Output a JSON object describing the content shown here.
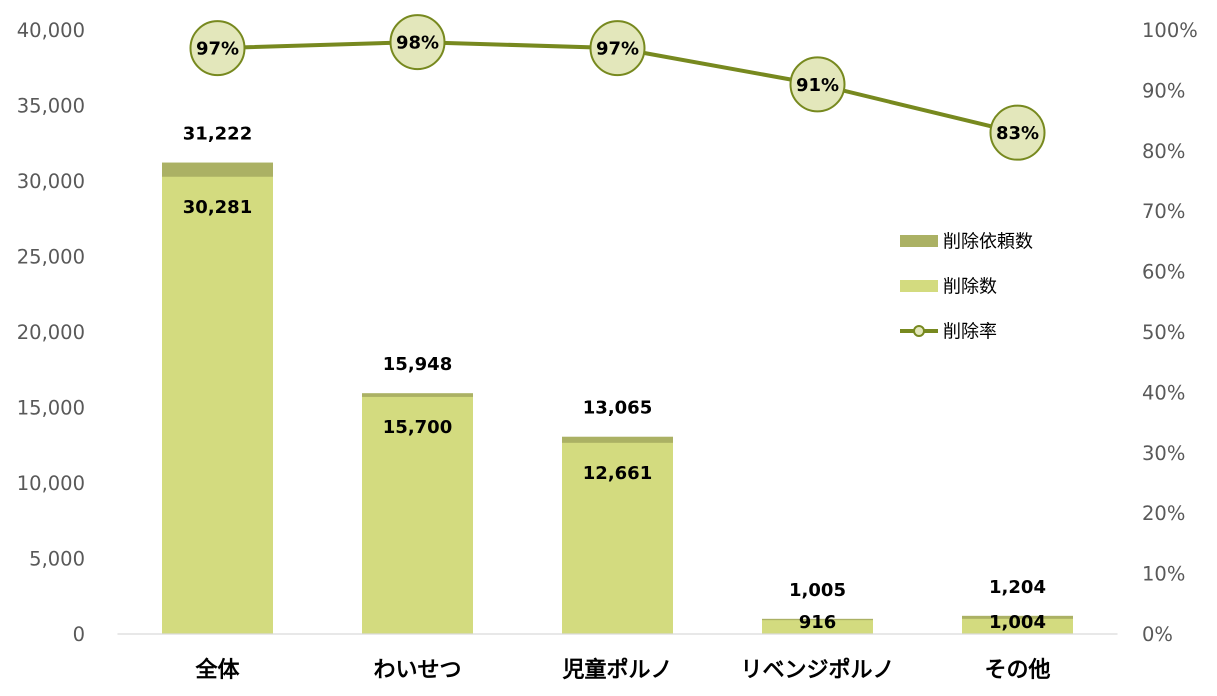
{
  "chart_data": {
    "type": "bar",
    "bar_mode": "overlap",
    "categories": [
      "全体",
      "わいせつ",
      "児童ポルノ",
      "リベンジポルノ",
      "その他"
    ],
    "series": [
      {
        "name": "削除依頼数",
        "type": "bar",
        "axis": "left",
        "values": [
          31222,
          15948,
          13065,
          1005,
          1204
        ],
        "data_labels": [
          "31,222",
          "15,948",
          "13,065",
          "1,005",
          "1,204"
        ],
        "color": "#abb164"
      },
      {
        "name": "削除数",
        "type": "bar",
        "axis": "left",
        "values": [
          30281,
          15700,
          12661,
          916,
          1004
        ],
        "data_labels": [
          "30,281",
          "15,700",
          "12,661",
          "916",
          "1,004"
        ],
        "color": "#d3db7f"
      },
      {
        "name": "削除率",
        "type": "line",
        "axis": "right",
        "values": [
          97,
          98,
          97,
          91,
          83
        ],
        "data_labels": [
          "97%",
          "98%",
          "97%",
          "91%",
          "83%"
        ],
        "color": "#77891f",
        "marker": "circle",
        "marker_fill": "#e3e7bb"
      }
    ],
    "y_left": {
      "ylim": [
        0,
        40000
      ],
      "ticks": [
        0,
        5000,
        10000,
        15000,
        20000,
        25000,
        30000,
        35000,
        40000
      ],
      "tick_labels": [
        "0",
        "5,000",
        "10,000",
        "15,000",
        "20,000",
        "25,000",
        "30,000",
        "35,000",
        "40,000"
      ]
    },
    "y_right": {
      "ylim": [
        0,
        100
      ],
      "ticks": [
        0,
        10,
        20,
        30,
        40,
        50,
        60,
        70,
        80,
        90,
        100
      ],
      "tick_labels": [
        "0%",
        "10%",
        "20%",
        "30%",
        "40%",
        "50%",
        "60%",
        "70%",
        "80%",
        "90%",
        "100%"
      ]
    },
    "grid": false,
    "legend": {
      "position": "right"
    },
    "axis_line_color": "#d9d9d9"
  }
}
